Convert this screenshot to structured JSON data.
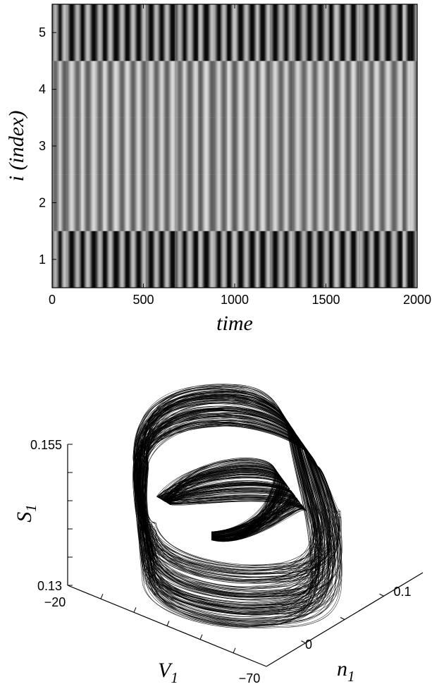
{
  "chart_data": [
    {
      "type": "heatmap",
      "colormap": "gray",
      "xlabel": "time",
      "ylabel": "i (index)",
      "xlim": [
        0,
        2000
      ],
      "ylim": [
        0.5,
        5.5
      ],
      "xticks": [
        "0",
        "500",
        "1000",
        "1500",
        "2000"
      ],
      "yticks": [
        "1",
        "2",
        "3",
        "4",
        "5"
      ],
      "rows": [
        {
          "index": 1,
          "oscillation_period": 62,
          "phase": 0.0,
          "mean_level": 0.35,
          "amplitude": 0.45
        },
        {
          "index": 2,
          "oscillation_period": 62,
          "phase": 0.5,
          "mean_level": 0.62,
          "amplitude": 0.28
        },
        {
          "index": 3,
          "oscillation_period": 62,
          "phase": 0.5,
          "mean_level": 0.62,
          "amplitude": 0.28
        },
        {
          "index": 4,
          "oscillation_period": 62,
          "phase": 0.5,
          "mean_level": 0.62,
          "amplitude": 0.28
        },
        {
          "index": 5,
          "oscillation_period": 62,
          "phase": 0.0,
          "mean_level": 0.35,
          "amplitude": 0.45
        }
      ]
    },
    {
      "type": "line3d",
      "description_series": "chaotic trajectory (S_1 vs V_1 vs n_1)",
      "color": "#000000",
      "axes": {
        "z": {
          "label": "S",
          "subscript": "1",
          "range": [
            0.13,
            0.155
          ],
          "ticks": [
            "0.13",
            "0.155"
          ]
        },
        "x": {
          "label": "V",
          "subscript": "1",
          "range": [
            -70,
            -20
          ],
          "ticks": [
            "−20",
            "−70"
          ]
        },
        "y": {
          "label": "n",
          "subscript": "1",
          "range": [
            0,
            0.1
          ],
          "ticks": [
            "0",
            "0.1"
          ]
        }
      }
    }
  ]
}
